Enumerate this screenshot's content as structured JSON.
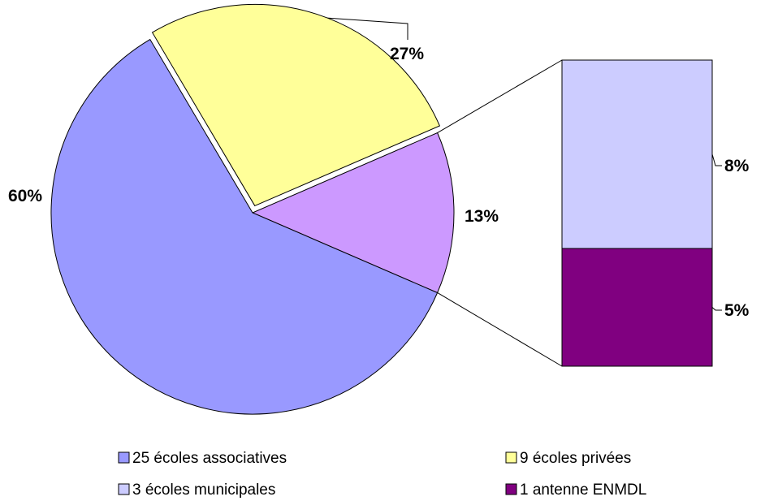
{
  "chart_data": {
    "type": "pie",
    "slices": [
      {
        "label": "25 écoles associatives",
        "value": 60,
        "display": "60%",
        "color": "#9999FF"
      },
      {
        "label": "9 écoles privées",
        "value": 27,
        "display": "27%",
        "color": "#FFFF99"
      },
      {
        "label": "3 écoles municipales + 1 antenne ENMDL",
        "value": 13,
        "display": "13%",
        "color": "#CC99FF"
      }
    ],
    "breakout": {
      "type": "bar-of-pie",
      "segments": [
        {
          "label": "3 écoles municipales",
          "value": 8,
          "display": "8%",
          "color": "#CCCCFF"
        },
        {
          "label": "1 antenne ENMDL",
          "value": 5,
          "display": "5%",
          "color": "#800080"
        }
      ]
    },
    "legend": {
      "position": "bottom",
      "items": [
        {
          "label": "25 écoles associatives",
          "color": "#9999FF"
        },
        {
          "label": "9 écoles privées",
          "color": "#FFFF99"
        },
        {
          "label": "3 écoles municipales",
          "color": "#CCCCFF"
        },
        {
          "label": "1 antenne ENMDL",
          "color": "#800080"
        }
      ]
    }
  }
}
